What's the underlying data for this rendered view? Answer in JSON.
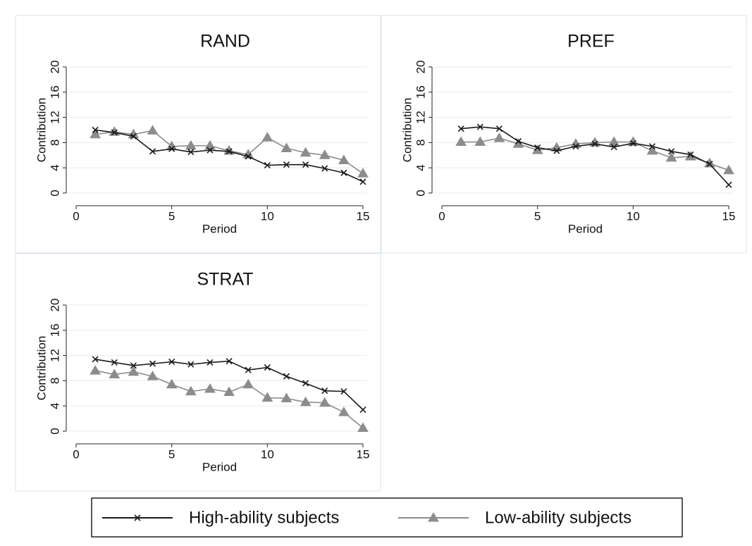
{
  "chart_data": [
    {
      "type": "line",
      "title": "RAND",
      "x_label": "Period",
      "y_label": "Contribution",
      "x": [
        1,
        2,
        3,
        4,
        5,
        6,
        7,
        8,
        9,
        10,
        11,
        12,
        13,
        14,
        15
      ],
      "series": [
        {
          "name": "High-ability subjects",
          "color": "#1a1a1a",
          "marker": "x",
          "values": [
            10,
            9.6,
            9,
            6.6,
            7,
            6.5,
            6.8,
            6.6,
            5.8,
            4.4,
            4.5,
            4.5,
            3.9,
            3.2,
            1.8
          ]
        },
        {
          "name": "Low-ability subjects",
          "color": "#8c8c8c",
          "marker": "triangle",
          "values": [
            9.3,
            9.7,
            9.3,
            9.9,
            7.4,
            7.5,
            7.5,
            6.7,
            6.1,
            8.8,
            7.1,
            6.4,
            6.0,
            5.2,
            3.1
          ]
        }
      ],
      "xlim": [
        0,
        15
      ],
      "xticks": [
        0,
        5,
        10,
        15
      ],
      "ylim": [
        0,
        20
      ],
      "yticks": [
        0,
        4,
        8,
        12,
        16,
        20
      ],
      "grid": true
    },
    {
      "type": "line",
      "title": "PREF",
      "x_label": "Period",
      "y_label": "Contribution",
      "x": [
        1,
        2,
        3,
        4,
        5,
        6,
        7,
        8,
        9,
        10,
        11,
        12,
        13,
        14,
        15
      ],
      "series": [
        {
          "name": "High-ability subjects",
          "color": "#1a1a1a",
          "marker": "x",
          "values": [
            10.2,
            10.5,
            10.2,
            8.2,
            7.2,
            6.7,
            7.4,
            7.8,
            7.3,
            7.9,
            7.4,
            6.6,
            6.1,
            4.6,
            1.3
          ]
        },
        {
          "name": "Low-ability subjects",
          "color": "#8c8c8c",
          "marker": "triangle",
          "values": [
            8.1,
            8.1,
            8.7,
            7.8,
            6.8,
            7.2,
            7.8,
            8.0,
            8.1,
            8.1,
            6.7,
            5.6,
            5.8,
            4.7,
            3.6
          ]
        }
      ],
      "xlim": [
        0,
        15
      ],
      "xticks": [
        0,
        5,
        10,
        15
      ],
      "ylim": [
        0,
        20
      ],
      "yticks": [
        0,
        4,
        8,
        12,
        16,
        20
      ],
      "grid": true
    },
    {
      "type": "line",
      "title": "STRAT",
      "x_label": "Period",
      "y_label": "Contribution",
      "x": [
        1,
        2,
        3,
        4,
        5,
        6,
        7,
        8,
        9,
        10,
        11,
        12,
        13,
        14,
        15
      ],
      "series": [
        {
          "name": "High-ability subjects",
          "color": "#1a1a1a",
          "marker": "x",
          "values": [
            11.4,
            10.9,
            10.4,
            10.7,
            11.0,
            10.6,
            10.9,
            11.1,
            9.7,
            10.1,
            8.7,
            7.6,
            6.4,
            6.3,
            3.4
          ]
        },
        {
          "name": "Low-ability subjects",
          "color": "#8c8c8c",
          "marker": "triangle",
          "values": [
            9.6,
            9.0,
            9.4,
            8.7,
            7.4,
            6.3,
            6.7,
            6.2,
            7.4,
            5.3,
            5.2,
            4.6,
            4.5,
            3.0,
            0.5
          ]
        }
      ],
      "xlim": [
        0,
        15
      ],
      "xticks": [
        0,
        5,
        10,
        15
      ],
      "ylim": [
        0,
        20
      ],
      "yticks": [
        0,
        4,
        8,
        12,
        16,
        20
      ],
      "grid": true
    }
  ]
}
